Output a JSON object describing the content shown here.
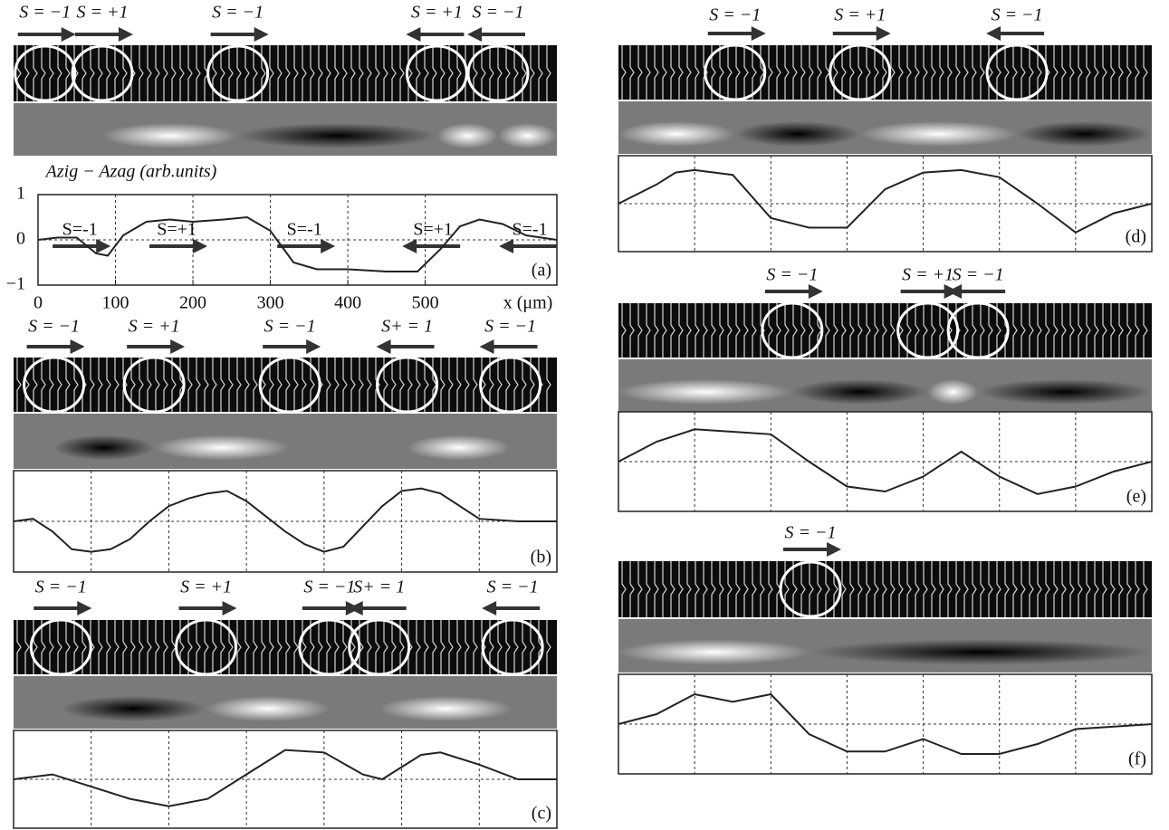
{
  "chart_data": [
    {
      "type": "line",
      "panel_label": "(a)",
      "ylabel": "Azig − Azag (arb.units)",
      "xlabel": "x (μm)",
      "xlim": [
        0,
        670
      ],
      "ylim": [
        -1,
        1
      ],
      "xticks": [
        0,
        100,
        200,
        300,
        400,
        500
      ],
      "yticks": [
        {
          "value": -1,
          "label": "−1"
        },
        0,
        1
      ],
      "tick_labels": true,
      "grid": true,
      "x": [
        0,
        25,
        50,
        75,
        90,
        110,
        140,
        170,
        200,
        240,
        270,
        300,
        330,
        360,
        400,
        450,
        490,
        520,
        545,
        570,
        600,
        630,
        670
      ],
      "series": [
        {
          "color": "#222222",
          "values": [
            0.0,
            0.05,
            0.05,
            -0.3,
            -0.35,
            0.1,
            0.4,
            0.45,
            0.4,
            0.45,
            0.5,
            0.2,
            -0.5,
            -0.65,
            -0.65,
            -0.7,
            -0.7,
            -0.2,
            0.3,
            0.45,
            0.35,
            0.1,
            0.0
          ]
        }
      ],
      "domain_walls": [
        {
          "label": "S = −1",
          "x": 9,
          "direction": "right"
        },
        {
          "label": "S = +1",
          "x": 83,
          "direction": "right"
        },
        {
          "label": "S = −1",
          "x": 258,
          "direction": "right"
        },
        {
          "label": "S = +1",
          "x": 515,
          "direction": "left"
        },
        {
          "label": "S = −1",
          "x": 594,
          "direction": "left"
        }
      ],
      "plot_annotations": [
        {
          "label": "S=-1",
          "x": 54,
          "direction": "right"
        },
        {
          "label": "S=+1",
          "x": 179,
          "direction": "right"
        },
        {
          "label": "S=-1",
          "x": 344,
          "direction": "right"
        },
        {
          "label": "S=+1",
          "x": 510,
          "direction": "left"
        },
        {
          "label": "S=-1",
          "x": 635,
          "direction": "left"
        }
      ]
    },
    {
      "type": "line",
      "panel_label": "(b)",
      "xlim": [
        0,
        700
      ],
      "ylim": [
        -1,
        1
      ],
      "xticks": [
        100,
        200,
        300,
        400,
        500,
        600
      ],
      "yticks": [
        0
      ],
      "tick_labels": false,
      "grid": true,
      "x": [
        0,
        25,
        50,
        75,
        100,
        125,
        150,
        175,
        200,
        225,
        250,
        275,
        300,
        325,
        350,
        375,
        400,
        425,
        450,
        475,
        500,
        525,
        550,
        575,
        600,
        650,
        700
      ],
      "series": [
        {
          "color": "#222222",
          "values": [
            0.0,
            0.05,
            -0.2,
            -0.55,
            -0.6,
            -0.55,
            -0.35,
            0.0,
            0.3,
            0.45,
            0.55,
            0.6,
            0.4,
            0.1,
            -0.2,
            -0.45,
            -0.6,
            -0.5,
            -0.1,
            0.3,
            0.6,
            0.65,
            0.55,
            0.3,
            0.05,
            0.0,
            0.0
          ]
        }
      ],
      "domain_walls": [
        {
          "label": "S = −1",
          "x": 52,
          "direction": "right"
        },
        {
          "label": "S = +1",
          "x": 181,
          "direction": "right"
        },
        {
          "label": "S = −1",
          "x": 356,
          "direction": "right"
        },
        {
          "label": "S+ = 1",
          "x": 507,
          "direction": "left"
        },
        {
          "label": "S = −1",
          "x": 640,
          "direction": "left"
        }
      ]
    },
    {
      "type": "line",
      "panel_label": "(c)",
      "xlim": [
        0,
        700
      ],
      "ylim": [
        -1,
        1
      ],
      "xticks": [
        100,
        200,
        300,
        400,
        500,
        600
      ],
      "yticks": [
        0
      ],
      "tick_labels": false,
      "grid": true,
      "x": [
        0,
        50,
        100,
        150,
        200,
        250,
        300,
        350,
        400,
        450,
        475,
        525,
        550,
        600,
        650,
        700
      ],
      "series": [
        {
          "color": "#222222",
          "values": [
            0.0,
            0.1,
            -0.15,
            -0.4,
            -0.55,
            -0.4,
            0.1,
            0.6,
            0.55,
            0.1,
            0.0,
            0.5,
            0.55,
            0.3,
            0.0,
            0.0
          ]
        }
      ],
      "domain_walls": [
        {
          "label": "S = −1",
          "x": 61,
          "direction": "right"
        },
        {
          "label": "S = +1",
          "x": 248,
          "direction": "right"
        },
        {
          "label": "S = −1",
          "x": 407,
          "direction": "right"
        },
        {
          "label": "S+ = 1",
          "x": 471,
          "direction": "left"
        },
        {
          "label": "S = −1",
          "x": 643,
          "direction": "left"
        }
      ]
    },
    {
      "type": "line",
      "panel_label": "(d)",
      "xlim": [
        0,
        700
      ],
      "ylim": [
        -1,
        1
      ],
      "xticks": [
        100,
        200,
        300,
        400,
        500,
        600
      ],
      "yticks": [
        0
      ],
      "tick_labels": false,
      "grid": true,
      "x": [
        0,
        50,
        75,
        100,
        150,
        200,
        250,
        300,
        350,
        400,
        450,
        500,
        550,
        600,
        650,
        700
      ],
      "series": [
        {
          "color": "#222222",
          "values": [
            0.0,
            0.4,
            0.65,
            0.7,
            0.6,
            -0.3,
            -0.5,
            -0.5,
            0.3,
            0.65,
            0.7,
            0.55,
            0.0,
            -0.6,
            -0.2,
            0.0
          ]
        }
      ],
      "domain_walls": [
        {
          "label": "S = −1",
          "x": 153,
          "direction": "right"
        },
        {
          "label": "S = +1",
          "x": 317,
          "direction": "right"
        },
        {
          "label": "S = −1",
          "x": 523,
          "direction": "left"
        }
      ]
    },
    {
      "type": "line",
      "panel_label": "(e)",
      "xlim": [
        0,
        700
      ],
      "ylim": [
        -1,
        1
      ],
      "xticks": [
        100,
        200,
        300,
        400,
        500,
        600
      ],
      "yticks": [
        0
      ],
      "tick_labels": false,
      "grid": true,
      "x": [
        0,
        50,
        100,
        150,
        200,
        250,
        300,
        350,
        400,
        450,
        500,
        550,
        600,
        650,
        700
      ],
      "series": [
        {
          "color": "#222222",
          "values": [
            0.0,
            0.4,
            0.65,
            0.6,
            0.55,
            0.0,
            -0.5,
            -0.6,
            -0.3,
            0.2,
            -0.3,
            -0.65,
            -0.5,
            -0.2,
            0.0
          ]
        }
      ],
      "domain_walls": [
        {
          "label": "S = −1",
          "x": 228,
          "direction": "right"
        },
        {
          "label": "S = +1",
          "x": 406,
          "direction": "right"
        },
        {
          "label": "S = −1",
          "x": 472,
          "direction": "left"
        }
      ]
    },
    {
      "type": "line",
      "panel_label": "(f)",
      "xlim": [
        0,
        700
      ],
      "ylim": [
        -1,
        1
      ],
      "xticks": [
        100,
        200,
        300,
        400,
        500,
        600
      ],
      "yticks": [
        0
      ],
      "tick_labels": false,
      "grid": true,
      "x": [
        0,
        50,
        100,
        150,
        200,
        250,
        300,
        350,
        400,
        450,
        500,
        550,
        600,
        700
      ],
      "series": [
        {
          "color": "#222222",
          "values": [
            0.0,
            0.2,
            0.6,
            0.45,
            0.6,
            -0.2,
            -0.55,
            -0.55,
            -0.3,
            -0.6,
            -0.6,
            -0.4,
            -0.1,
            0.0
          ]
        }
      ],
      "domain_walls": [
        {
          "label": "S = −1",
          "x": 252,
          "direction": "right"
        }
      ]
    }
  ]
}
